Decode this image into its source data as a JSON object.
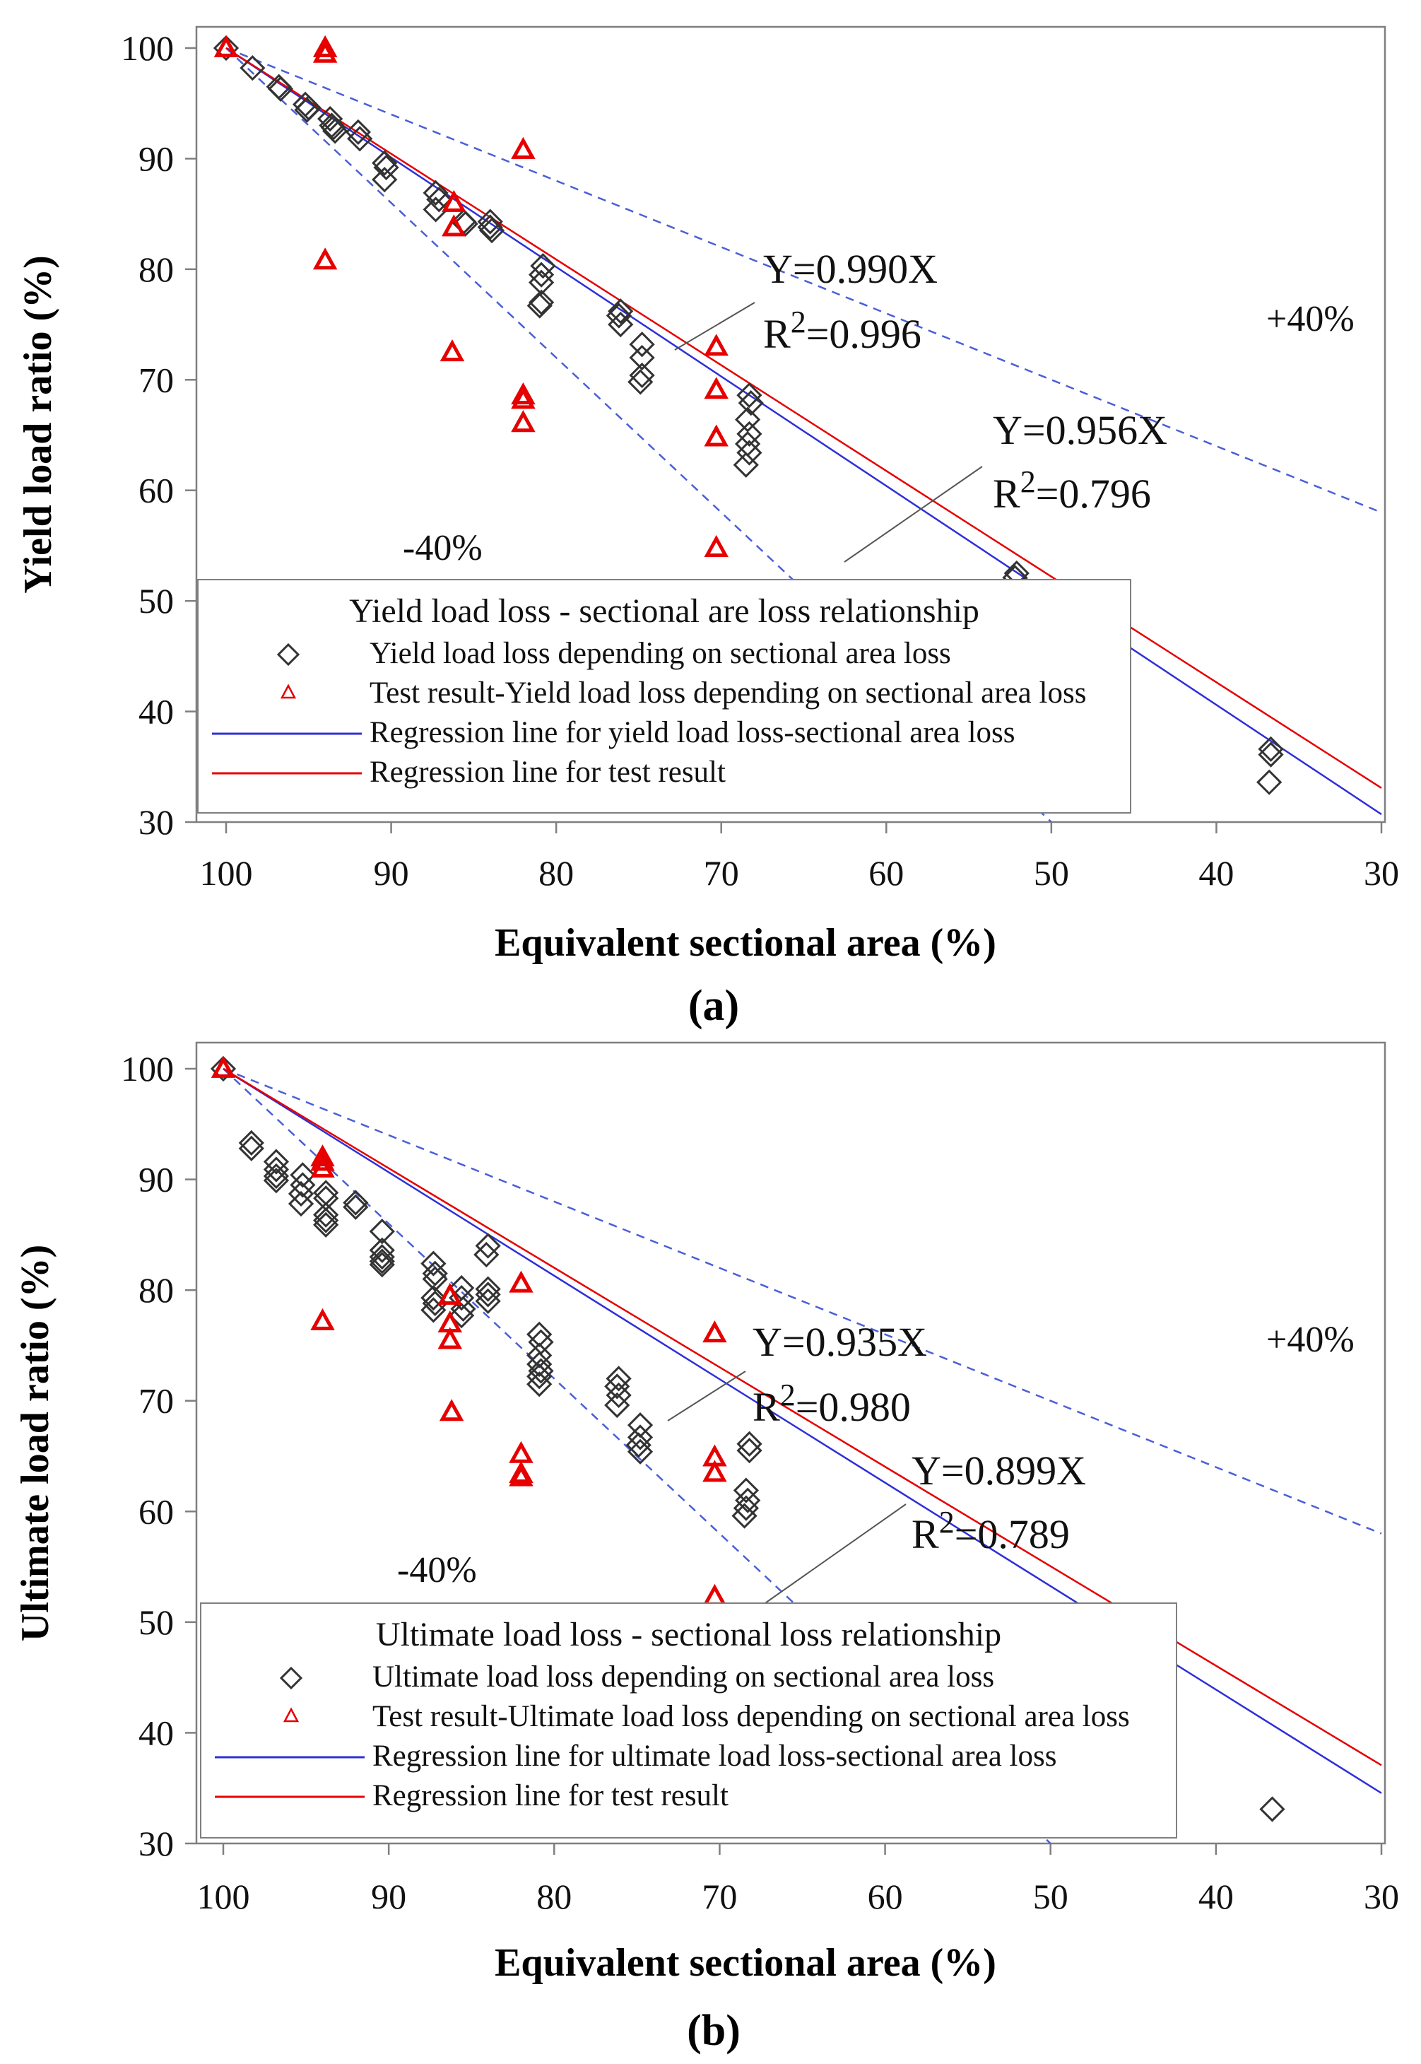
{
  "figure": {
    "background": "#ffffff"
  },
  "colors": {
    "frame": "#7f7f7f",
    "blue": "#2f2fd8",
    "red": "#e60000",
    "diamond": "#333333",
    "envelope": "#4a5fd6"
  },
  "chart_data": [
    {
      "id": "a",
      "panel_label": "(a)",
      "type": "scatter",
      "title": "",
      "xlabel": "Equivalent sectional area (%)",
      "ylabel": "Yield load ratio (%)",
      "xlim": [
        100,
        30
      ],
      "x_reversed": true,
      "ylim": [
        30,
        100
      ],
      "xticks": [
        "100",
        "90",
        "80",
        "70",
        "60",
        "50",
        "40",
        "30"
      ],
      "yticks": [
        "30",
        "40",
        "50",
        "60",
        "70",
        "80",
        "90",
        "100"
      ],
      "envelope_labels": {
        "plus": "+40%",
        "minus": "-40%"
      },
      "regressions": [
        {
          "name": "Regression line for yield load loss-sectional area loss",
          "color": "blue",
          "slope": 0.99,
          "eq": "Y=0.990X",
          "r2_prefix": "R",
          "r2_sup": "2",
          "r2_value": "=0.996"
        },
        {
          "name": "Regression line for test result",
          "color": "red",
          "slope": 0.956,
          "eq": "Y=0.956X",
          "r2_prefix": "R",
          "r2_sup": "2",
          "r2_value": "=0.796"
        }
      ],
      "legend": {
        "title": "Yield load loss - sectional are loss relationship",
        "placement": "bottom-left",
        "entries": [
          "Yield load loss depending on sectional area loss",
          "Test result-Yield load loss depending on sectional area loss",
          "Regression line for yield load loss-sectional area loss",
          "Regression line for test result"
        ]
      },
      "series": [
        {
          "name": "Yield load loss depending on sectional area loss",
          "marker": "diamond",
          "points": [
            [
              100,
              100
            ],
            [
              98.4,
              98.2
            ],
            [
              96.8,
              96.5
            ],
            [
              96.7,
              96.3
            ],
            [
              95.2,
              94.9
            ],
            [
              95,
              94.6
            ],
            [
              95.1,
              94.4
            ],
            [
              93.7,
              93.6
            ],
            [
              93.6,
              93
            ],
            [
              93.5,
              92.8
            ],
            [
              93.4,
              92.5
            ],
            [
              92,
              92.4
            ],
            [
              91.9,
              91.8
            ],
            [
              90.4,
              89.6
            ],
            [
              90.3,
              89.2
            ],
            [
              90.4,
              88.1
            ],
            [
              87.3,
              86.9
            ],
            [
              87.1,
              86.3
            ],
            [
              87.3,
              85.4
            ],
            [
              85.6,
              84.3
            ],
            [
              85.5,
              84.1
            ],
            [
              84,
              84.3
            ],
            [
              84,
              83.8
            ],
            [
              83.9,
              83.5
            ],
            [
              80.8,
              80.3
            ],
            [
              80.9,
              79.5
            ],
            [
              80.9,
              78.8
            ],
            [
              80.9,
              77
            ],
            [
              81,
              76.7
            ],
            [
              76.1,
              76.2
            ],
            [
              76.2,
              75.8
            ],
            [
              76.1,
              75
            ],
            [
              74.8,
              73.2
            ],
            [
              74.8,
              72
            ],
            [
              74.8,
              70.4
            ],
            [
              74.9,
              69.8
            ],
            [
              68.3,
              68.6
            ],
            [
              68.2,
              67.9
            ],
            [
              68.4,
              66.4
            ],
            [
              68.3,
              65.1
            ],
            [
              68.4,
              64.2
            ],
            [
              68.3,
              63.4
            ],
            [
              68.5,
              62.3
            ],
            [
              52.1,
              52.5
            ],
            [
              52.2,
              52.1
            ],
            [
              36.7,
              36.6
            ],
            [
              36.7,
              36.1
            ],
            [
              36.8,
              33.6
            ]
          ]
        },
        {
          "name": "Test result-Yield load loss depending on sectional area loss",
          "marker": "triangle",
          "points": [
            [
              100,
              100
            ],
            [
              94,
              100
            ],
            [
              94,
              99.5
            ],
            [
              94,
              80.8
            ],
            [
              86.2,
              86
            ],
            [
              86.2,
              83.8
            ],
            [
              86.3,
              72.5
            ],
            [
              82,
              90.8
            ],
            [
              82,
              68.6
            ],
            [
              82,
              68.2
            ],
            [
              82,
              66.1
            ],
            [
              70.3,
              73
            ],
            [
              70.3,
              69.1
            ],
            [
              70.3,
              64.8
            ],
            [
              70.3,
              54.8
            ]
          ]
        }
      ]
    },
    {
      "id": "b",
      "panel_label": "(b)",
      "type": "scatter",
      "title": "",
      "xlabel": "Equivalent sectional area (%)",
      "ylabel": "Ultimate load ratio (%)",
      "xlim": [
        100,
        30
      ],
      "x_reversed": true,
      "ylim": [
        30,
        100
      ],
      "xticks": [
        "100",
        "90",
        "80",
        "70",
        "60",
        "50",
        "40",
        "30"
      ],
      "yticks": [
        "30",
        "40",
        "50",
        "60",
        "70",
        "80",
        "90",
        "100"
      ],
      "envelope_labels": {
        "plus": "+40%",
        "minus": "-40%"
      },
      "regressions": [
        {
          "name": "Regression line for ultimate load loss-sectional area loss",
          "color": "blue",
          "slope": 0.935,
          "eq": "Y=0.935X",
          "r2_prefix": "R",
          "r2_sup": "2",
          "r2_value": "=0.980"
        },
        {
          "name": "Regression line for test result",
          "color": "red",
          "slope": 0.899,
          "eq": "Y=0.899X",
          "r2_prefix": "R",
          "r2_sup": "2",
          "r2_value": "=0.789"
        }
      ],
      "legend": {
        "title": "Ultimate load loss - sectional loss relationship",
        "placement": "bottom-left",
        "entries": [
          "Ultimate load loss depending on sectional area loss",
          "Test result-Ultimate load loss depending on sectional area loss",
          "Regression line for ultimate load loss-sectional area loss",
          "Regression line for test result"
        ]
      },
      "series": [
        {
          "name": "Ultimate load loss depending on sectional area loss",
          "marker": "diamond",
          "points": [
            [
              100,
              100
            ],
            [
              98.3,
              93.3
            ],
            [
              98.3,
              92.8
            ],
            [
              96.8,
              91.6
            ],
            [
              96.8,
              90.9
            ],
            [
              96.8,
              90.3
            ],
            [
              96.8,
              89.9
            ],
            [
              95.2,
              90.4
            ],
            [
              95.2,
              89.5
            ],
            [
              95.3,
              88.7
            ],
            [
              95.3,
              87.8
            ],
            [
              93.8,
              88.8
            ],
            [
              93.8,
              88.3
            ],
            [
              93.8,
              86.8
            ],
            [
              93.8,
              86.3
            ],
            [
              93.8,
              85.9
            ],
            [
              92,
              87.9
            ],
            [
              92,
              87.5
            ],
            [
              90.4,
              85.3
            ],
            [
              90.4,
              83.6
            ],
            [
              90.4,
              83
            ],
            [
              90.4,
              82.6
            ],
            [
              90.4,
              82.3
            ],
            [
              87.3,
              82.4
            ],
            [
              87.2,
              81.5
            ],
            [
              87.2,
              81
            ],
            [
              87.3,
              79.3
            ],
            [
              87.2,
              78.8
            ],
            [
              87.3,
              78.2
            ],
            [
              85.6,
              80.2
            ],
            [
              85.6,
              79.3
            ],
            [
              85.5,
              78.3
            ],
            [
              85.6,
              77.7
            ],
            [
              84,
              84
            ],
            [
              84.1,
              83.2
            ],
            [
              84,
              80.1
            ],
            [
              84,
              79.6
            ],
            [
              84,
              79
            ],
            [
              80.9,
              76
            ],
            [
              80.8,
              75.3
            ],
            [
              80.9,
              74.1
            ],
            [
              80.9,
              73.3
            ],
            [
              80.8,
              72.7
            ],
            [
              80.9,
              72.2
            ],
            [
              80.9,
              71.5
            ],
            [
              76.1,
              72
            ],
            [
              76.2,
              71.3
            ],
            [
              76.1,
              70.5
            ],
            [
              76.2,
              69.6
            ],
            [
              74.8,
              67.8
            ],
            [
              74.8,
              66.7
            ],
            [
              74.9,
              66
            ],
            [
              74.8,
              65.4
            ],
            [
              68.2,
              66.1
            ],
            [
              68.2,
              65.5
            ],
            [
              68.4,
              61.9
            ],
            [
              68.3,
              61
            ],
            [
              68.4,
              60.3
            ],
            [
              68.5,
              59.6
            ],
            [
              36.6,
              33.1
            ]
          ]
        },
        {
          "name": "Test result-Ultimate load loss depending on sectional area loss",
          "marker": "triangle",
          "points": [
            [
              100,
              100
            ],
            [
              94,
              92
            ],
            [
              94,
              91.6
            ],
            [
              94,
              91
            ],
            [
              94,
              77.2
            ],
            [
              86.3,
              79.5
            ],
            [
              86.3,
              77
            ],
            [
              86.3,
              75.5
            ],
            [
              86.2,
              69
            ],
            [
              82,
              80.6
            ],
            [
              82,
              65.2
            ],
            [
              82,
              63.4
            ],
            [
              82,
              63.1
            ],
            [
              70.3,
              76.1
            ],
            [
              70.3,
              64.9
            ],
            [
              70.3,
              63.5
            ],
            [
              70.3,
              52.3
            ]
          ]
        }
      ]
    }
  ]
}
